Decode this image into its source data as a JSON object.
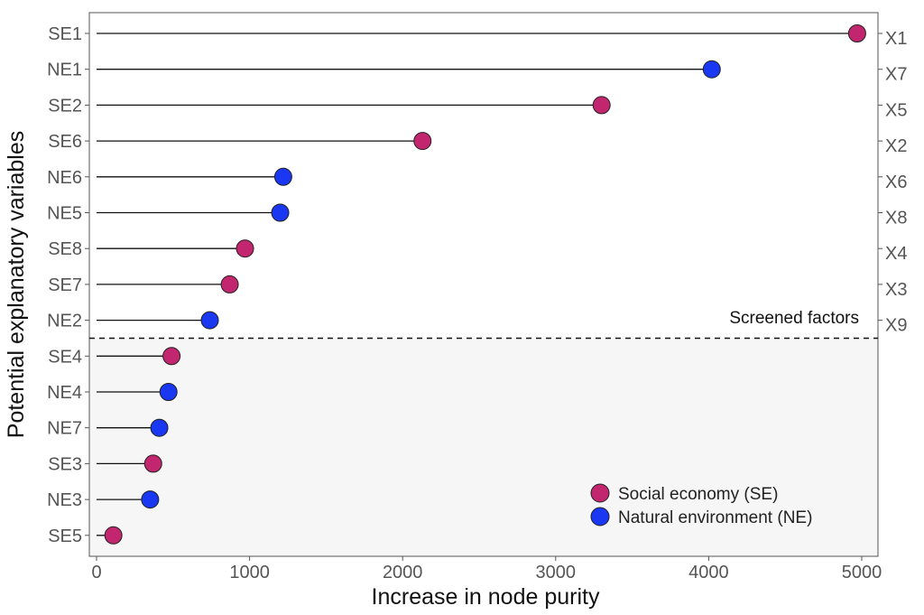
{
  "chart_data": {
    "type": "lollipop",
    "xlabel": "Increase in node purity",
    "ylabel": "Potential explanatory variables",
    "xlim": [
      0,
      5050
    ],
    "xticks": [
      0,
      1000,
      2000,
      3000,
      4000,
      5000
    ],
    "xtick_labels": [
      "0",
      "1000",
      "2000",
      "3000",
      "4000",
      "5000"
    ],
    "threshold_annotation": "Screened factors",
    "groups": {
      "SE": {
        "label": "Social economy (SE)",
        "color": "#c2266f"
      },
      "NE": {
        "label": "Natural environment (NE)",
        "color": "#1a37f2"
      }
    },
    "legend_order": [
      "SE",
      "NE"
    ],
    "items": [
      {
        "label": "SE1",
        "group": "SE",
        "value": 4970,
        "screened": true,
        "alias": "X1"
      },
      {
        "label": "NE1",
        "group": "NE",
        "value": 4020,
        "screened": true,
        "alias": "X7"
      },
      {
        "label": "SE2",
        "group": "SE",
        "value": 3300,
        "screened": true,
        "alias": "X5"
      },
      {
        "label": "SE6",
        "group": "SE",
        "value": 2130,
        "screened": true,
        "alias": "X2"
      },
      {
        "label": "NE6",
        "group": "NE",
        "value": 1220,
        "screened": true,
        "alias": "X6"
      },
      {
        "label": "NE5",
        "group": "NE",
        "value": 1200,
        "screened": true,
        "alias": "X8"
      },
      {
        "label": "SE8",
        "group": "SE",
        "value": 970,
        "screened": true,
        "alias": "X4"
      },
      {
        "label": "SE7",
        "group": "SE",
        "value": 870,
        "screened": true,
        "alias": "X3"
      },
      {
        "label": "NE2",
        "group": "NE",
        "value": 740,
        "screened": true,
        "alias": "X9"
      },
      {
        "label": "SE4",
        "group": "SE",
        "value": 490,
        "screened": false
      },
      {
        "label": "NE4",
        "group": "NE",
        "value": 470,
        "screened": false
      },
      {
        "label": "NE7",
        "group": "NE",
        "value": 410,
        "screened": false
      },
      {
        "label": "SE3",
        "group": "SE",
        "value": 370,
        "screened": false
      },
      {
        "label": "NE3",
        "group": "NE",
        "value": 350,
        "screened": false
      },
      {
        "label": "SE5",
        "group": "SE",
        "value": 110,
        "screened": false
      }
    ]
  }
}
